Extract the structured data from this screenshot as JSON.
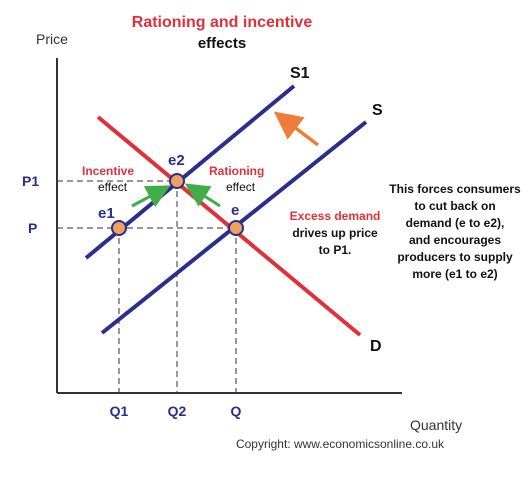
{
  "title_line1": "Rationing and incentive",
  "title_line2": "effects",
  "axes": {
    "y_label": "Price",
    "x_label": "Quantity",
    "price_ticks": [
      "P1",
      "P"
    ],
    "quantity_ticks": [
      "Q1",
      "Q2",
      "Q"
    ]
  },
  "curves": {
    "s1_label": "S1",
    "s_label": "S",
    "d_label": "D"
  },
  "points": {
    "e1_label": "e1",
    "e2_label": "e2",
    "e_label": "e"
  },
  "annotations": {
    "incentive_line1": "Incentive",
    "incentive_line2": "effect",
    "rationing_line1": "Rationing",
    "rationing_line2": "effect",
    "excess_line1": "Excess demand",
    "excess_line2": "drives up price",
    "excess_line3": "to P1.",
    "note_lines": [
      "This forces consumers",
      "to cut back on",
      "demand (e to e2),",
      "and encourages",
      "producers to supply",
      "more (e1 to e2)"
    ]
  },
  "copyright": "Copyright: www.economicsonline.co.uk",
  "colors": {
    "supply": "#2b2e8c",
    "demand": "#e0303a",
    "title": "#e0303a",
    "point_fill": "#f0a060",
    "arrow_green": "#3fae49",
    "arrow_orange": "#ee7d3a",
    "label_blue": "#2b2e8c"
  }
}
